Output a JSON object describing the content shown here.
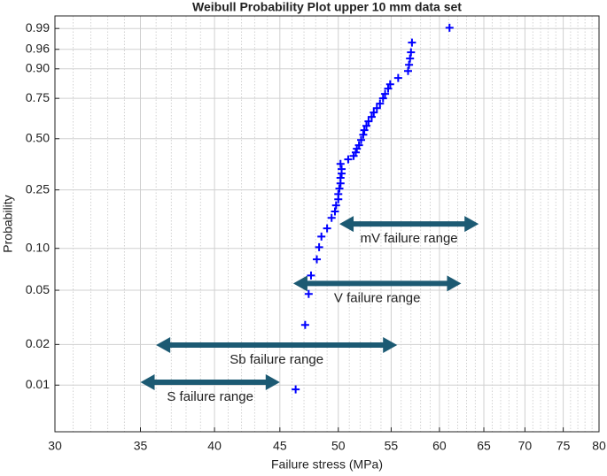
{
  "chart_data": {
    "type": "scatter",
    "title": "Weibull Probability Plot upper 10 mm data set",
    "xlabel": "Failure stress (MPa)",
    "ylabel": "Probability",
    "xscale": "log",
    "yscale": "weibull",
    "xlim": [
      30,
      80
    ],
    "xticks": [
      30,
      35,
      40,
      45,
      50,
      55,
      60,
      65,
      70,
      75,
      80
    ],
    "ylim": [
      0.0045,
      0.9967
    ],
    "yticks": [
      0.01,
      0.02,
      0.05,
      {
        "value": 0.1,
        "label": "0.10"
      },
      0.25,
      {
        "value": 0.5,
        "label": "0.50"
      },
      0.75,
      {
        "value": 0.9,
        "label": "0.90"
      },
      0.96,
      0.99
    ],
    "grid": true,
    "minor_grid": true,
    "series": [
      {
        "color": "#0000ff",
        "x": [
          46.3,
          47.1,
          47.4,
          47.6,
          48.1,
          48.3,
          48.5,
          49.0,
          49.4,
          49.7,
          49.8,
          50.0,
          50.0,
          50.1,
          50.2,
          50.2,
          50.3,
          50.3,
          50.2,
          50.9,
          51.4,
          51.6,
          51.7,
          51.9,
          52.1,
          52.3,
          52.4,
          52.6,
          52.8,
          53.1,
          53.3,
          53.6,
          53.9,
          54.2,
          54.4,
          54.7,
          54.9,
          55.7,
          56.7,
          56.8,
          56.9,
          57.0,
          57.1,
          61.1
        ],
        "values": [
          0.0093,
          0.0279,
          0.047,
          0.064,
          0.0835,
          0.102,
          0.121,
          0.138,
          0.163,
          0.18,
          0.198,
          0.217,
          0.235,
          0.255,
          0.275,
          0.298,
          0.317,
          0.337,
          0.362,
          0.385,
          0.403,
          0.422,
          0.442,
          0.462,
          0.492,
          0.524,
          0.552,
          0.579,
          0.607,
          0.635,
          0.663,
          0.69,
          0.718,
          0.75,
          0.776,
          0.806,
          0.829,
          0.86,
          0.891,
          0.915,
          0.936,
          0.953,
          0.973,
          0.9906
        ]
      }
    ],
    "annotations": [
      {
        "text": "mV failure range",
        "range": [
          50.1,
          64.4
        ],
        "y": 0.148,
        "color": "#1c5a73"
      },
      {
        "text": "V failure range",
        "range": [
          46.1,
          62.4
        ],
        "y": 0.056,
        "color": "#1c5a73"
      },
      {
        "text": "Sb failure range",
        "range": [
          36.0,
          55.6
        ],
        "y": 0.0198,
        "color": "#1c5a73"
      },
      {
        "text": "S failure range",
        "range": [
          35.0,
          45.0
        ],
        "y": 0.0105,
        "color": "#1c5a73"
      }
    ]
  }
}
